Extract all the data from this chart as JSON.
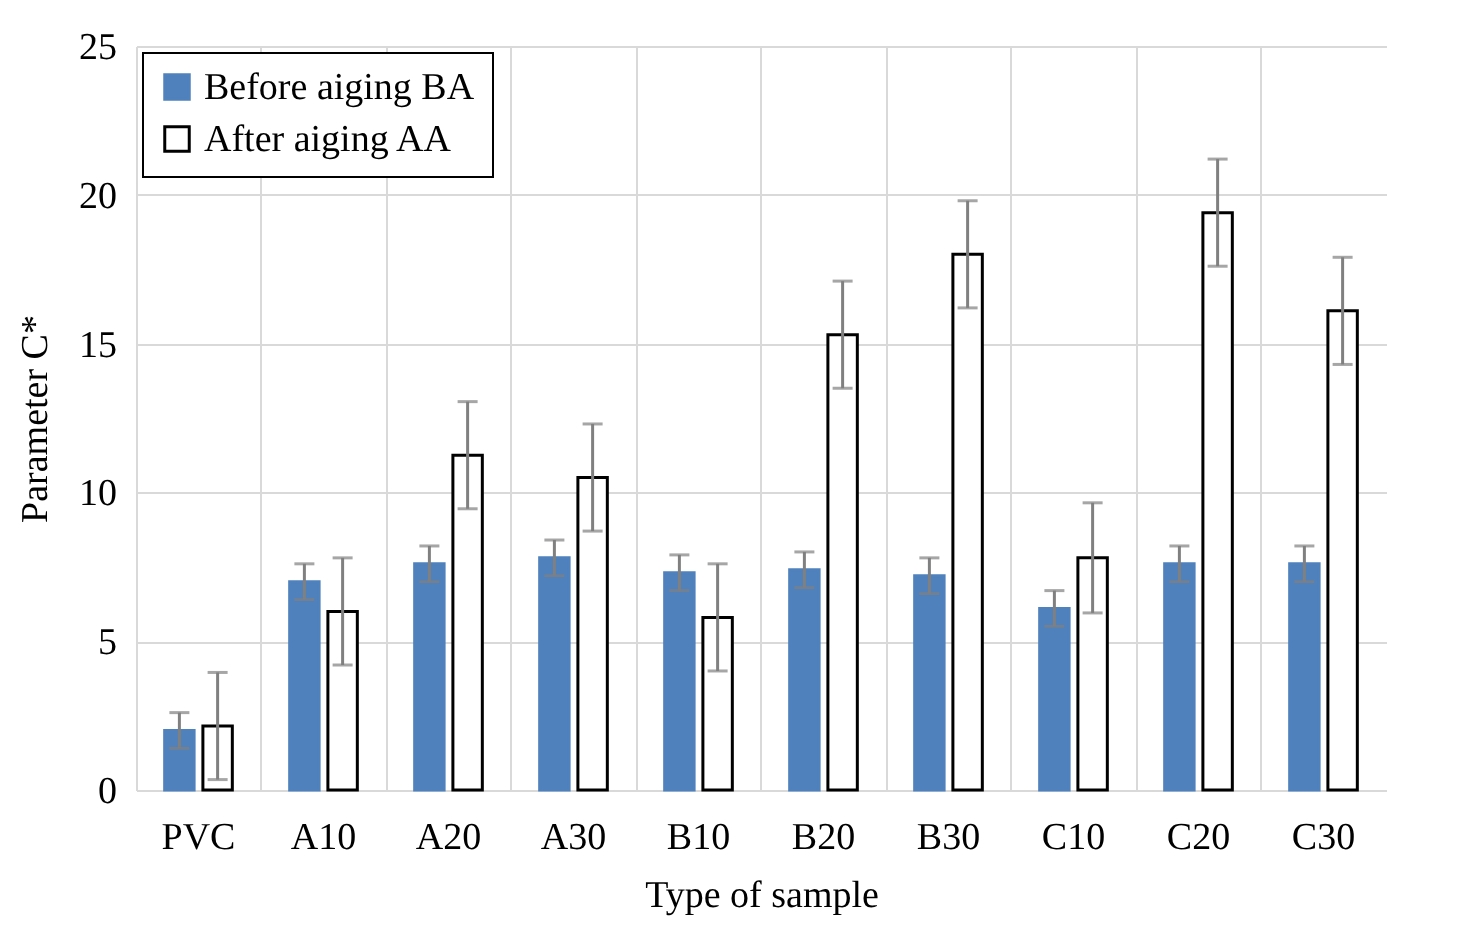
{
  "chart_data": {
    "type": "bar",
    "xlabel": "Type of sample",
    "ylabel": "Parameter C*",
    "categories": [
      "PVC",
      "A10",
      "A20",
      "A30",
      "B10",
      "B20",
      "B30",
      "C10",
      "C20",
      "C30"
    ],
    "series": [
      {
        "name": "Before aiging BA",
        "color": "#4f81bd",
        "values": [
          2.0,
          7.0,
          7.6,
          7.8,
          7.3,
          7.4,
          7.2,
          6.1,
          7.6,
          7.6
        ],
        "errors": [
          0.6,
          0.6,
          0.6,
          0.6,
          0.6,
          0.6,
          0.6,
          0.6,
          0.6,
          0.6
        ]
      },
      {
        "name": "After aiging AA",
        "color": "#ffffff",
        "values": [
          2.15,
          6.0,
          11.25,
          10.5,
          5.8,
          15.3,
          18.0,
          7.8,
          19.4,
          16.1
        ],
        "errors": [
          1.8,
          1.8,
          1.8,
          1.8,
          1.8,
          1.8,
          1.8,
          1.85,
          1.8,
          1.8
        ]
      }
    ],
    "ylim": [
      0,
      25
    ],
    "yticks": [
      0,
      5,
      10,
      15,
      20,
      25
    ],
    "grid": true,
    "legend": "top left"
  }
}
